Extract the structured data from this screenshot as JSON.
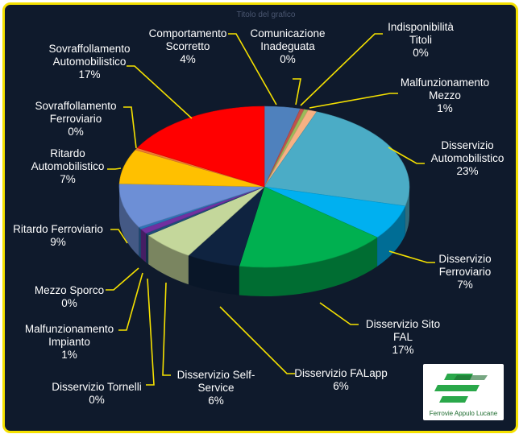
{
  "chart_data": {
    "type": "pie",
    "title": "Titolo del grafico",
    "slices": [
      {
        "label": "Comportamento Scorretto",
        "value": 4,
        "value_label": "4%",
        "color": "#4f81bd"
      },
      {
        "label": "Comunicazione Inadeguata",
        "value": 0,
        "value_label": "0%",
        "color": "#c0504d"
      },
      {
        "label": "Indisponibilità Titoli",
        "value": 0,
        "value_label": "0%",
        "color": "#9bbb59"
      },
      {
        "label": "Malfunzionamento Mezzo",
        "value": 1,
        "value_label": "1%",
        "color": "#f6b183"
      },
      {
        "label": "Disservizio Automobilistico",
        "value": 23,
        "value_label": "23%",
        "color": "#4bacc6"
      },
      {
        "label": "Disservizio Ferroviario",
        "value": 7,
        "value_label": "7%",
        "color": "#00b0f0"
      },
      {
        "label": "Disservizio Sito FAL",
        "value": 17,
        "value_label": "17%",
        "color": "#00b050"
      },
      {
        "label": "Disservizio FALapp",
        "value": 6,
        "value_label": "6%",
        "color": "#0f2340"
      },
      {
        "label": "Disservizio Self-Service",
        "value": 6,
        "value_label": "6%",
        "color": "#c4d79b"
      },
      {
        "label": "Disservizio Tornelli",
        "value": 0,
        "value_label": "0%",
        "color": "#1f4e79"
      },
      {
        "label": "Malfunzionamento Impianto",
        "value": 1,
        "value_label": "1%",
        "color": "#7030a0"
      },
      {
        "label": "Mezzo Sporco",
        "value": 0,
        "value_label": "0%",
        "color": "#2e75b6"
      },
      {
        "label": "Ritardo Ferroviario",
        "value": 9,
        "value_label": "9%",
        "color": "#6d8fd6"
      },
      {
        "label": "Ritardo Automobilistico",
        "value": 7,
        "value_label": "7%",
        "color": "#ffc000"
      },
      {
        "label": "Sovraffollamento Ferroviario",
        "value": 0,
        "value_label": "0%",
        "color": "#ed7d31"
      },
      {
        "label": "Sovraffollamento Automobilistico",
        "value": 17,
        "value_label": "17%",
        "color": "#ff0000"
      }
    ],
    "legend": "none",
    "labels": "outside with leader lines"
  },
  "logo": {
    "text": "Ferrovie Appulo Lucane"
  }
}
